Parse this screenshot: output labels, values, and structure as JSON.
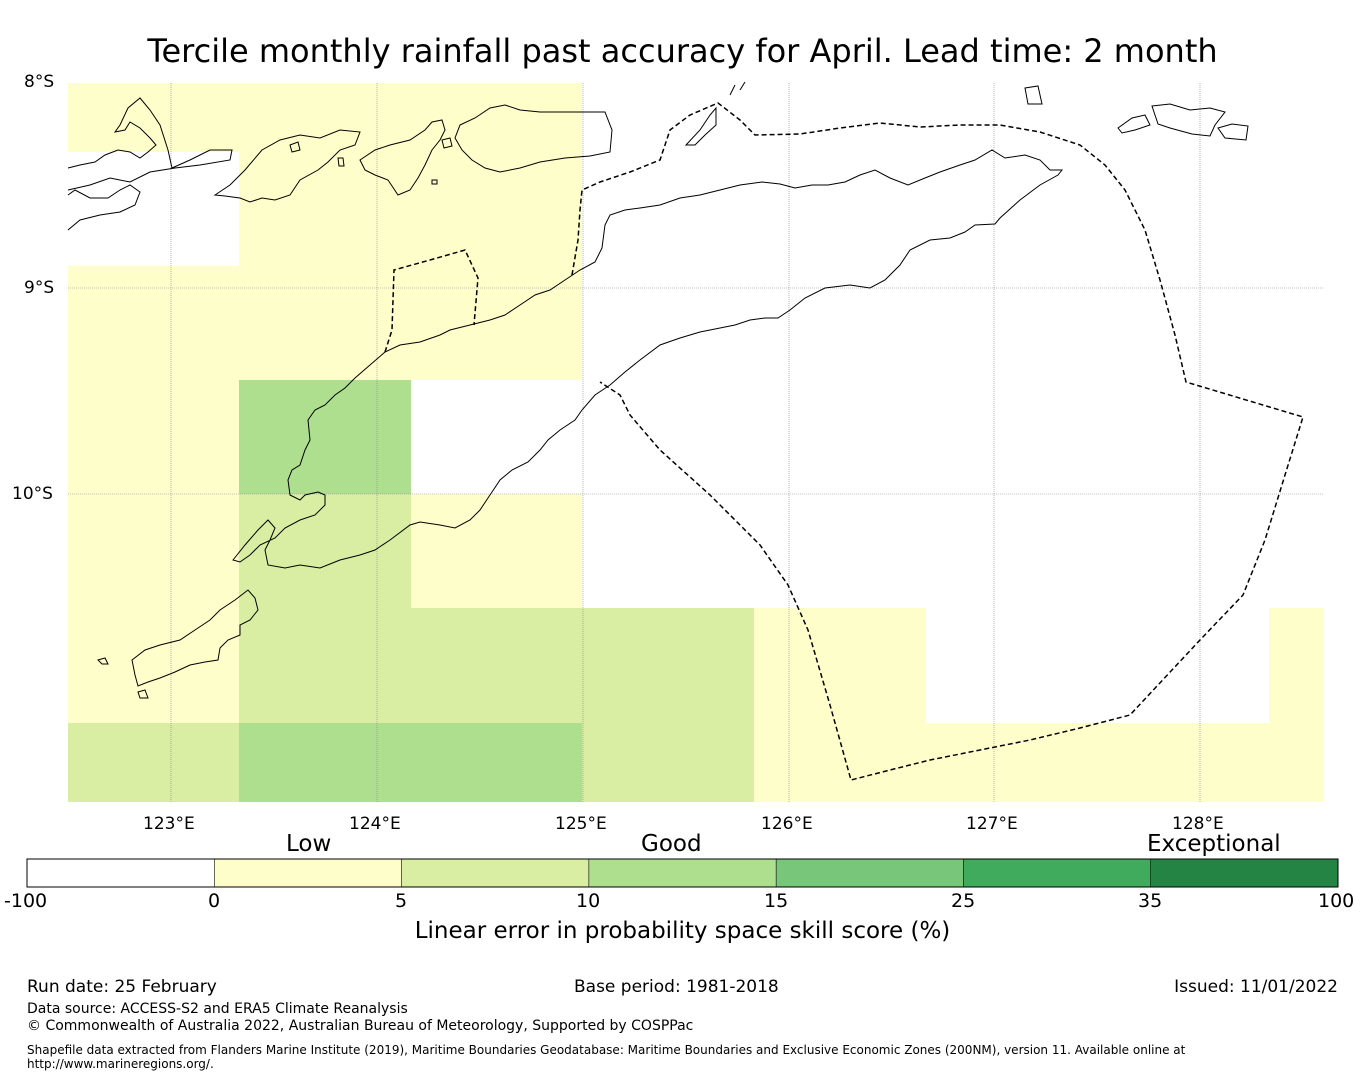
{
  "title": "Tercile monthly rainfall past accuracy for April. Lead time: 2 month",
  "map": {
    "lat_labels": [
      "8°S",
      "9°S",
      "10°S"
    ],
    "lon_labels": [
      "123°E",
      "124°E",
      "125°E",
      "126°E",
      "127°E",
      "128°E"
    ],
    "features": [
      "skill-score-grid",
      "coastline",
      "maritime-boundary-eez"
    ]
  },
  "colorbar": {
    "category_labels": [
      "Low",
      "Good",
      "Exceptional"
    ],
    "ticks": [
      "-100",
      "0",
      "5",
      "10",
      "15",
      "25",
      "35",
      "100"
    ],
    "colors": [
      "#ffffff",
      "#fefecb",
      "#d9eea3",
      "#addf8e",
      "#78c679",
      "#41ab5d",
      "#238443"
    ],
    "axis_label": "Linear error in probability space skill score (%)"
  },
  "footer": {
    "run_date": "Run date: 25 February",
    "base_period": "Base period: 1981-2018",
    "issued": "Issued: 11/01/2022",
    "data_source": "Data source: ACCESS-S2 and ERA5 Climate Reanalysis",
    "copyright": "© Commonwealth of Australia 2022, Australian Bureau of Meteorology, Supported by COSPPac",
    "shapefile": "Shapefile data extracted from Flanders Marine Institute (2019), Maritime Boundaries Geodatabase: Maritime Boundaries and Exclusive Economic Zones (200NM), version 11. Available online at http://www.marineregions.org/."
  }
}
